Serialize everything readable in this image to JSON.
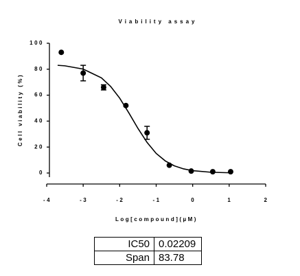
{
  "chart_data": {
    "type": "scatter",
    "title": "Viability assay",
    "xlabel": "Log[compound](µM)",
    "ylabel": "Cell viability (%)",
    "x": [
      -3.6,
      -3.0,
      -2.44,
      -1.83,
      -1.25,
      -0.64,
      -0.04,
      0.55,
      1.04
    ],
    "values": [
      93,
      77,
      66,
      52,
      31,
      6,
      1.5,
      1,
      1
    ],
    "errors": [
      null,
      6,
      2,
      null,
      5,
      null,
      null,
      null,
      null
    ],
    "fit": {
      "x": [
        -3.7,
        -3.5,
        -3,
        -2.5,
        -2.25,
        -2,
        -1.75,
        -1.5,
        -1.25,
        -1,
        -0.75,
        -0.5,
        -0.25,
        0,
        0.5,
        1
      ],
      "values": [
        83.0,
        82.6,
        80.1,
        73.3,
        66.8,
        57.7,
        46.4,
        34.4,
        23.6,
        15.1,
        9.3,
        5.5,
        3.2,
        1.8,
        0.6,
        0.2
      ]
    },
    "color": "#000000",
    "xlim": [
      -4,
      2
    ],
    "xticks": [
      -4,
      -3,
      -2,
      -1,
      0,
      1,
      2
    ],
    "ylim": [
      0,
      100
    ],
    "yticks": [
      0,
      20,
      40,
      60,
      80,
      100
    ]
  },
  "table": {
    "rows": [
      [
        "IC50",
        0.02209
      ],
      [
        "Span",
        83.78
      ]
    ]
  }
}
